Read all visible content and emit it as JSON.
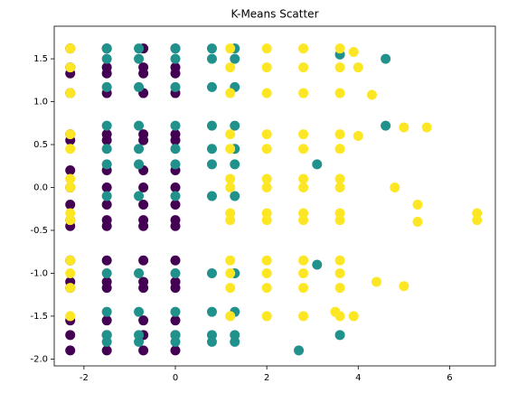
{
  "chart_data": {
    "type": "scatter",
    "title": "K-Means Scatter",
    "xlim": [
      -2.65,
      7.0
    ],
    "ylim": [
      -2.08,
      1.88
    ],
    "xticks": [
      -2,
      0,
      2,
      4,
      6
    ],
    "yticks": [
      {
        "value": -2,
        "label": "-2.0"
      },
      -1.5,
      {
        "value": -1,
        "label": "-1.0"
      },
      -0.5,
      {
        "value": 0,
        "label": "0.0"
      },
      0.5,
      {
        "value": 1,
        "label": "1.0"
      },
      1.5
    ],
    "series": [
      {
        "color": "#440154",
        "x": [
          -2.3,
          -1.5,
          -0.7,
          0.0,
          -2.3,
          -1.5,
          -0.7,
          0.0,
          -2.3,
          -1.5,
          -0.7,
          0.0,
          -2.3,
          -1.5,
          -0.7,
          0.0,
          -2.3,
          -1.5,
          -0.7,
          0.0,
          -2.3,
          -1.5,
          -0.7,
          0.0,
          -2.3,
          -1.5,
          -0.7,
          0.0,
          -2.3,
          -1.5,
          -0.7,
          0.0,
          -2.3,
          -1.5,
          -0.7,
          0.0,
          -2.3,
          -1.5,
          -0.7,
          0.0,
          -2.3,
          -1.5,
          -0.7,
          0.0,
          -2.3,
          -1.5,
          -0.7,
          0.0,
          -2.3,
          -1.5,
          -0.7,
          0.0,
          -2.3,
          -1.5,
          -0.7,
          0.0,
          -2.3,
          -1.5,
          -0.7,
          0.0,
          -2.3,
          -1.5,
          -0.7,
          0.0,
          -2.3,
          -1.5,
          -0.7,
          0.0
        ],
        "values": [
          1.62,
          1.62,
          1.62,
          1.62,
          1.4,
          1.4,
          1.4,
          1.4,
          1.33,
          1.33,
          1.33,
          1.33,
          1.1,
          1.1,
          1.1,
          1.1,
          0.62,
          0.62,
          0.62,
          0.62,
          0.55,
          0.55,
          0.55,
          0.55,
          0.2,
          0.2,
          0.2,
          0.2,
          0.0,
          0.0,
          0.0,
          0.0,
          -0.2,
          -0.2,
          -0.2,
          -0.2,
          -0.38,
          -0.38,
          -0.38,
          -0.38,
          -0.45,
          -0.45,
          -0.45,
          -0.45,
          -0.85,
          -0.85,
          -0.85,
          -0.85,
          -1.1,
          -1.1,
          -1.1,
          -1.1,
          -1.17,
          -1.17,
          -1.17,
          -1.17,
          -1.55,
          -1.55,
          -1.55,
          -1.55,
          -1.72,
          -1.72,
          -1.72,
          -1.72,
          -1.9,
          -1.9,
          -1.9,
          -1.9
        ]
      },
      {
        "color": "#21918c",
        "x": [
          -1.5,
          -0.8,
          0,
          0.8,
          1.3,
          -1.5,
          -0.8,
          0,
          0.8,
          1.3,
          -1.5,
          -0.8,
          0,
          0.8,
          1.3,
          -1.5,
          -0.8,
          0,
          0.8,
          1.3,
          -1.5,
          -0.8,
          0,
          0.8,
          1.3,
          -1.5,
          -0.8,
          0,
          0.8,
          1.3,
          -1.5,
          -0.8,
          0,
          0.8,
          1.3,
          -1.5,
          -0.8,
          0,
          0.8,
          1.3,
          -1.5,
          -0.8,
          0,
          0.8,
          1.3,
          -1.5,
          -0.8,
          0,
          0.8,
          1.3,
          -1.5,
          -0.8,
          0,
          0.8,
          1.3,
          4.6,
          3.6,
          3.1,
          3.6,
          2.7,
          4.6,
          3.1
        ],
        "values": [
          1.62,
          1.62,
          1.62,
          1.62,
          1.62,
          1.5,
          1.5,
          1.5,
          1.5,
          1.5,
          1.17,
          1.17,
          1.17,
          1.17,
          1.17,
          0.72,
          0.72,
          0.72,
          0.72,
          0.72,
          0.45,
          0.45,
          0.45,
          0.45,
          0.45,
          0.27,
          0.27,
          0.27,
          0.27,
          0.27,
          -0.1,
          -0.1,
          -0.1,
          -0.1,
          -0.1,
          -1.0,
          -1.0,
          -1.0,
          -1.0,
          -1.0,
          -1.45,
          -1.45,
          -1.45,
          -1.45,
          -1.45,
          -1.72,
          -1.72,
          -1.72,
          -1.72,
          -1.72,
          -1.8,
          -1.8,
          -1.8,
          -1.8,
          -1.8,
          1.5,
          1.55,
          0.27,
          -1.72,
          -1.9,
          0.72,
          -0.9
        ]
      },
      {
        "color": "#fde725",
        "x": [
          -2.3,
          1.2,
          2.0,
          2.8,
          3.6,
          -2.3,
          1.2,
          2.0,
          2.8,
          3.6,
          -2.3,
          1.2,
          2.0,
          2.8,
          3.6,
          -2.3,
          1.2,
          2.0,
          2.8,
          3.6,
          -2.3,
          1.2,
          2.0,
          2.8,
          3.6,
          -2.3,
          1.2,
          2.0,
          2.8,
          3.6,
          -2.3,
          1.2,
          2.0,
          2.8,
          3.6,
          -2.3,
          1.2,
          2.0,
          2.8,
          3.6,
          -2.3,
          1.2,
          2.0,
          2.8,
          3.6,
          -2.3,
          1.2,
          2.0,
          2.8,
          3.6,
          -2.3,
          1.2,
          2.0,
          2.8,
          3.6,
          -2.3,
          1.2,
          2.0,
          2.8,
          3.6,
          -2.3,
          1.2,
          2.0,
          2.8,
          3.6,
          6.6,
          6.6,
          5.5,
          5.0,
          5.3,
          5.0,
          4.4,
          4.8,
          4.0,
          4.3,
          3.9,
          4.0,
          3.5,
          3.9,
          5.3
        ],
        "values": [
          1.62,
          1.62,
          1.62,
          1.62,
          1.62,
          1.4,
          1.4,
          1.4,
          1.4,
          1.4,
          1.1,
          1.1,
          1.1,
          1.1,
          1.1,
          0.62,
          0.62,
          0.62,
          0.62,
          0.62,
          0.45,
          0.45,
          0.45,
          0.45,
          0.45,
          0.1,
          0.1,
          0.1,
          0.1,
          0.1,
          0.0,
          0.0,
          0.0,
          0.0,
          0.0,
          -0.3,
          -0.3,
          -0.3,
          -0.3,
          -0.3,
          -0.38,
          -0.38,
          -0.38,
          -0.38,
          -0.38,
          -0.85,
          -0.85,
          -0.85,
          -0.85,
          -0.85,
          -1.0,
          -1.0,
          -1.0,
          -1.0,
          -1.0,
          -1.17,
          -1.17,
          -1.17,
          -1.17,
          -1.17,
          -1.5,
          -1.5,
          -1.5,
          -1.5,
          -1.5,
          -0.3,
          -0.38,
          0.7,
          0.7,
          -0.2,
          -1.15,
          -1.1,
          0.0,
          1.4,
          1.08,
          1.58,
          0.6,
          -1.45,
          -1.5,
          -0.4
        ]
      }
    ]
  }
}
